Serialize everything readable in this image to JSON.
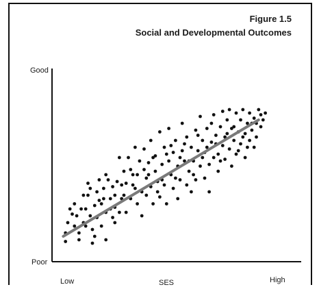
{
  "figure_label": "Figure 1.5",
  "chart_data": {
    "type": "scatter",
    "title": "Social and Developmental Outcomes",
    "xlabel": "SES",
    "ylabel": "",
    "x_tick_labels": [
      "Low",
      "High"
    ],
    "y_tick_labels": [
      "Poor",
      "Good"
    ],
    "xlim": [
      0,
      1
    ],
    "ylim": [
      0,
      1
    ],
    "grid": false,
    "trendline": {
      "x": [
        0.05,
        0.92
      ],
      "y": [
        0.14,
        0.82
      ]
    },
    "colors": {
      "points": "#111111",
      "trendline": "#7a7a7a",
      "axis": "#111111"
    },
    "points": [
      [
        0.06,
        0.11
      ],
      [
        0.06,
        0.16
      ],
      [
        0.07,
        0.22
      ],
      [
        0.09,
        0.27
      ],
      [
        0.1,
        0.33
      ],
      [
        0.1,
        0.2
      ],
      [
        0.11,
        0.26
      ],
      [
        0.12,
        0.16
      ],
      [
        0.13,
        0.3
      ],
      [
        0.14,
        0.22
      ],
      [
        0.14,
        0.38
      ],
      [
        0.15,
        0.3
      ],
      [
        0.16,
        0.45
      ],
      [
        0.16,
        0.38
      ],
      [
        0.17,
        0.26
      ],
      [
        0.18,
        0.18
      ],
      [
        0.18,
        0.1
      ],
      [
        0.19,
        0.32
      ],
      [
        0.2,
        0.4
      ],
      [
        0.2,
        0.25
      ],
      [
        0.21,
        0.47
      ],
      [
        0.22,
        0.33
      ],
      [
        0.22,
        0.2
      ],
      [
        0.23,
        0.42
      ],
      [
        0.24,
        0.28
      ],
      [
        0.24,
        0.12
      ],
      [
        0.25,
        0.47
      ],
      [
        0.26,
        0.36
      ],
      [
        0.27,
        0.43
      ],
      [
        0.27,
        0.25
      ],
      [
        0.28,
        0.31
      ],
      [
        0.28,
        0.38
      ],
      [
        0.29,
        0.46
      ],
      [
        0.3,
        0.28
      ],
      [
        0.3,
        0.6
      ],
      [
        0.31,
        0.36
      ],
      [
        0.32,
        0.52
      ],
      [
        0.33,
        0.28
      ],
      [
        0.33,
        0.45
      ],
      [
        0.34,
        0.6
      ],
      [
        0.35,
        0.36
      ],
      [
        0.35,
        0.53
      ],
      [
        0.36,
        0.44
      ],
      [
        0.37,
        0.66
      ],
      [
        0.38,
        0.33
      ],
      [
        0.38,
        0.5
      ],
      [
        0.39,
        0.58
      ],
      [
        0.4,
        0.4
      ],
      [
        0.4,
        0.26
      ],
      [
        0.41,
        0.65
      ],
      [
        0.42,
        0.48
      ],
      [
        0.42,
        0.38
      ],
      [
        0.43,
        0.57
      ],
      [
        0.44,
        0.43
      ],
      [
        0.44,
        0.7
      ],
      [
        0.45,
        0.33
      ],
      [
        0.46,
        0.52
      ],
      [
        0.46,
        0.61
      ],
      [
        0.47,
        0.46
      ],
      [
        0.48,
        0.75
      ],
      [
        0.48,
        0.37
      ],
      [
        0.49,
        0.56
      ],
      [
        0.5,
        0.66
      ],
      [
        0.5,
        0.44
      ],
      [
        0.51,
        0.33
      ],
      [
        0.52,
        0.58
      ],
      [
        0.52,
        0.77
      ],
      [
        0.53,
        0.5
      ],
      [
        0.54,
        0.42
      ],
      [
        0.54,
        0.63
      ],
      [
        0.55,
        0.7
      ],
      [
        0.56,
        0.55
      ],
      [
        0.56,
        0.36
      ],
      [
        0.57,
        0.47
      ],
      [
        0.58,
        0.64
      ],
      [
        0.58,
        0.8
      ],
      [
        0.59,
        0.58
      ],
      [
        0.6,
        0.44
      ],
      [
        0.6,
        0.72
      ],
      [
        0.61,
        0.52
      ],
      [
        0.62,
        0.66
      ],
      [
        0.62,
        0.4
      ],
      [
        0.63,
        0.58
      ],
      [
        0.64,
        0.76
      ],
      [
        0.64,
        0.47
      ],
      [
        0.65,
        0.64
      ],
      [
        0.66,
        0.55
      ],
      [
        0.66,
        0.84
      ],
      [
        0.67,
        0.7
      ],
      [
        0.68,
        0.48
      ],
      [
        0.68,
        0.63
      ],
      [
        0.69,
        0.77
      ],
      [
        0.7,
        0.56
      ],
      [
        0.7,
        0.4
      ],
      [
        0.71,
        0.69
      ],
      [
        0.72,
        0.6
      ],
      [
        0.72,
        0.85
      ],
      [
        0.73,
        0.73
      ],
      [
        0.74,
        0.62
      ],
      [
        0.74,
        0.52
      ],
      [
        0.75,
        0.78
      ],
      [
        0.76,
        0.67
      ],
      [
        0.76,
        0.87
      ],
      [
        0.77,
        0.59
      ],
      [
        0.78,
        0.74
      ],
      [
        0.78,
        0.82
      ],
      [
        0.79,
        0.65
      ],
      [
        0.8,
        0.55
      ],
      [
        0.8,
        0.77
      ],
      [
        0.81,
        0.7
      ],
      [
        0.82,
        0.86
      ],
      [
        0.82,
        0.62
      ],
      [
        0.83,
        0.75
      ],
      [
        0.84,
        0.82
      ],
      [
        0.84,
        0.68
      ],
      [
        0.85,
        0.88
      ],
      [
        0.86,
        0.74
      ],
      [
        0.86,
        0.6
      ],
      [
        0.87,
        0.8
      ],
      [
        0.88,
        0.7
      ],
      [
        0.88,
        0.86
      ],
      [
        0.89,
        0.76
      ],
      [
        0.9,
        0.83
      ],
      [
        0.9,
        0.66
      ],
      [
        0.91,
        0.8
      ],
      [
        0.92,
        0.88
      ],
      [
        0.93,
        0.85
      ],
      [
        0.93,
        0.78
      ],
      [
        0.94,
        0.82
      ],
      [
        0.95,
        0.86
      ],
      [
        0.21,
        0.35
      ],
      [
        0.26,
        0.3
      ],
      [
        0.31,
        0.44
      ],
      [
        0.36,
        0.5
      ],
      [
        0.41,
        0.53
      ],
      [
        0.45,
        0.6
      ],
      [
        0.49,
        0.47
      ],
      [
        0.53,
        0.67
      ],
      [
        0.57,
        0.6
      ],
      [
        0.61,
        0.58
      ],
      [
        0.65,
        0.73
      ],
      [
        0.69,
        0.66
      ],
      [
        0.73,
        0.68
      ],
      [
        0.77,
        0.72
      ],
      [
        0.81,
        0.78
      ],
      [
        0.85,
        0.72
      ],
      [
        0.89,
        0.8
      ],
      [
        0.15,
        0.2
      ],
      [
        0.19,
        0.14
      ],
      [
        0.23,
        0.36
      ],
      [
        0.28,
        0.22
      ],
      [
        0.32,
        0.38
      ],
      [
        0.37,
        0.42
      ],
      [
        0.43,
        0.5
      ],
      [
        0.47,
        0.4
      ],
      [
        0.51,
        0.62
      ],
      [
        0.55,
        0.48
      ],
      [
        0.59,
        0.68
      ],
      [
        0.63,
        0.5
      ],
      [
        0.67,
        0.6
      ],
      [
        0.71,
        0.8
      ],
      [
        0.75,
        0.58
      ],
      [
        0.79,
        0.88
      ],
      [
        0.83,
        0.64
      ],
      [
        0.87,
        0.66
      ],
      [
        0.91,
        0.72
      ],
      [
        0.12,
        0.12
      ],
      [
        0.08,
        0.3
      ],
      [
        0.17,
        0.42
      ],
      [
        0.24,
        0.5
      ]
    ]
  }
}
